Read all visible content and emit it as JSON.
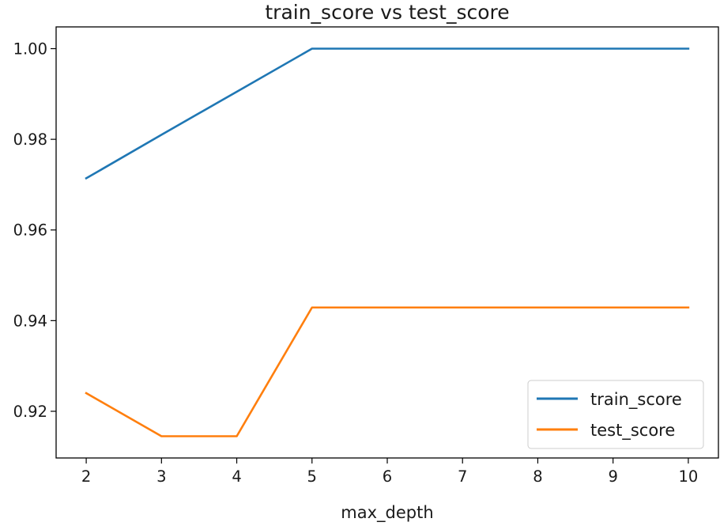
{
  "chart_data": {
    "type": "line",
    "title": "train_score vs test_score",
    "xlabel": "max_depth",
    "ylabel": "",
    "x": [
      2,
      3,
      4,
      5,
      6,
      7,
      8,
      9,
      10
    ],
    "series": [
      {
        "name": "train_score",
        "color": "#1f77b4",
        "values": [
          0.9714,
          0.981,
          0.9905,
          1.0,
          1.0,
          1.0,
          1.0,
          1.0,
          1.0
        ]
      },
      {
        "name": "test_score",
        "color": "#ff7f0e",
        "values": [
          0.924,
          0.9145,
          0.9145,
          0.9429,
          0.9429,
          0.9429,
          0.9429,
          0.9429,
          0.9429
        ]
      }
    ],
    "xlim": [
      1.6,
      10.4
    ],
    "ylim": [
      0.9097,
      1.0048
    ],
    "xticks": [
      2,
      3,
      4,
      5,
      6,
      7,
      8,
      9,
      10
    ],
    "xtick_labels": [
      "2",
      "3",
      "4",
      "5",
      "6",
      "7",
      "8",
      "9",
      "10"
    ],
    "yticks": [
      0.92,
      0.94,
      0.96,
      0.98,
      1.0
    ],
    "ytick_labels": [
      "0.92",
      "0.94",
      "0.96",
      "0.98",
      "1.00"
    ],
    "grid": false,
    "legend_position": "lower-right"
  }
}
